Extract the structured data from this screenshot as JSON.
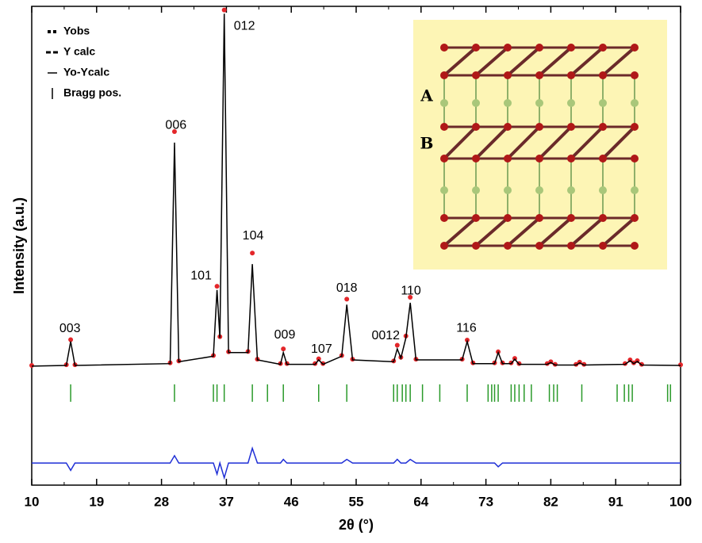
{
  "chart_data": {
    "type": "line",
    "xlabel": "2θ (°)",
    "ylabel": "Intensity (a.u.)",
    "xlim": [
      10,
      100
    ],
    "xticks": [
      10,
      19,
      28,
      37,
      46,
      55,
      64,
      73,
      82,
      91,
      100
    ],
    "ylim": [
      -32,
      98
    ],
    "x": [
      10,
      14.8,
      15.4,
      16.0,
      29.2,
      29.8,
      30.4,
      35.2,
      35.7,
      36.1,
      36.7,
      37.3,
      40.0,
      40.6,
      41.3,
      44.5,
      44.9,
      45.4,
      49.3,
      49.8,
      50.4,
      53.0,
      53.7,
      54.5,
      60.2,
      60.7,
      61.2,
      61.9,
      62.5,
      63.3,
      69.7,
      70.4,
      71.2,
      74.2,
      74.7,
      75.3,
      76.5,
      77.0,
      77.6,
      81.5,
      82.0,
      82.6,
      85.5,
      86.0,
      86.6,
      92.3,
      93.0,
      93.5,
      94.0,
      94.6,
      100
    ],
    "series": [
      {
        "name": "Yobs",
        "color": "#e3262a",
        "style": "points",
        "values": [
          0.5,
          0.7,
          7.5,
          0.7,
          1.2,
          64,
          1.7,
          3.2,
          22,
          8.3,
          97,
          4.2,
          4.3,
          31,
          2.2,
          1,
          5,
          1,
          1,
          2.3,
          1,
          3.2,
          18.5,
          2.2,
          1.7,
          6,
          2.7,
          8.5,
          19,
          2.2,
          2.2,
          7.4,
          1.2,
          1.2,
          4.2,
          1.2,
          1.2,
          2.4,
          1,
          1,
          1.5,
          0.8,
          0.8,
          1.4,
          0.8,
          1,
          2,
          1.2,
          1.8,
          0.8,
          0.7
        ]
      },
      {
        "name": "Y calc",
        "color": "#000000",
        "style": "line",
        "values": [
          0.3,
          0.5,
          7,
          0.5,
          1,
          61,
          1.5,
          3,
          21,
          8,
          96,
          4,
          4,
          28,
          2,
          0.8,
          4,
          0.8,
          0.8,
          2,
          0.8,
          3,
          17,
          2,
          1.5,
          5,
          2.5,
          8,
          17.5,
          2,
          2,
          7,
          1,
          1,
          4,
          1,
          1,
          2.2,
          0.8,
          0.8,
          1.3,
          0.6,
          0.6,
          1.2,
          0.6,
          0.8,
          1.8,
          1,
          1.6,
          0.6,
          0.5
        ]
      },
      {
        "name": "Yo-Ycalc",
        "color": "#1f2fd6",
        "style": "line",
        "values": [
          -26,
          -26,
          -28,
          -26,
          -26,
          -24,
          -26,
          -26,
          -29,
          -26,
          -30,
          -26,
          -26,
          -22,
          -26,
          -26,
          -25,
          -26,
          -26,
          -26,
          -26,
          -26,
          -25,
          -26,
          -26,
          -25,
          -26,
          -26,
          -25,
          -26,
          -26,
          -26,
          -26,
          -26,
          -27,
          -26,
          -26,
          -26,
          -26,
          -26,
          -26,
          -26,
          -26,
          -26,
          -26,
          -26,
          -26,
          -26,
          -26,
          -26,
          -26
        ]
      },
      {
        "name": "Bragg pos.",
        "color": "#2a9a2a",
        "style": "ticks",
        "x": [
          15.4,
          29.8,
          35.2,
          35.7,
          36.7,
          40.6,
          42.7,
          44.9,
          49.8,
          53.7,
          60.2,
          60.7,
          61.4,
          61.9,
          62.5,
          64.2,
          66.6,
          70.4,
          73.3,
          73.8,
          74.2,
          74.7,
          76.5,
          77.0,
          77.6,
          78.3,
          79.3,
          81.8,
          82.4,
          82.9,
          86.3,
          91.2,
          92.2,
          92.8,
          93.3,
          98.2,
          98.6
        ],
        "values": [
          -7,
          -7,
          -7,
          -7,
          -7,
          -7,
          -7,
          -7,
          -7,
          -7,
          -7,
          -7,
          -7,
          -7,
          -7,
          -7,
          -7,
          -7,
          -7,
          -7,
          -7,
          -7,
          -7,
          -7,
          -7,
          -7,
          -7,
          -7,
          -7,
          -7,
          -7,
          -7,
          -7,
          -7,
          -7,
          -7,
          -7
        ]
      }
    ],
    "annotations": [
      {
        "text": "003",
        "x": 15.3,
        "y": 10.4
      },
      {
        "text": "006",
        "x": 30.0,
        "y": 65.7
      },
      {
        "text": "101",
        "x": 33.5,
        "y": 24.8
      },
      {
        "text": "012",
        "x": 39.5,
        "y": 92.6
      },
      {
        "text": "104",
        "x": 40.7,
        "y": 35.6
      },
      {
        "text": "009",
        "x": 45.1,
        "y": 8.7
      },
      {
        "text": "107",
        "x": 50.2,
        "y": 4.8
      },
      {
        "text": "018",
        "x": 53.7,
        "y": 21.4
      },
      {
        "text": "0012",
        "x": 59.1,
        "y": 8.5
      },
      {
        "text": "110",
        "x": 62.6,
        "y": 20.7
      },
      {
        "text": "116",
        "x": 70.3,
        "y": 10.6
      }
    ],
    "inset_labels": [
      "A",
      "B"
    ],
    "legend": "upper left"
  }
}
